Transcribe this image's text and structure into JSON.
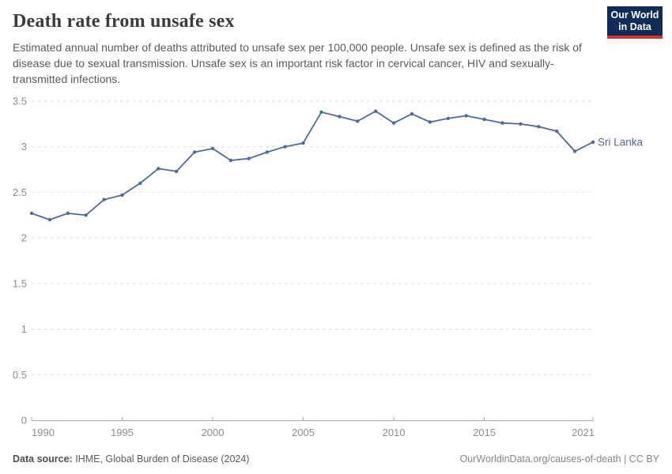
{
  "header": {
    "title": "Death rate from unsafe sex",
    "subtitle": "Estimated annual number of deaths attributed to unsafe sex per 100,000 people. Unsafe sex is defined as the risk of disease due to sexual transmission. Unsafe sex is an important risk factor in cervical cancer, HIV and sexually-transmitted infections."
  },
  "logo": {
    "line1": "Our World",
    "line2": "in Data",
    "bg_color": "#102d59",
    "stripe_color": "#d7332c",
    "text_color": "#ffffff"
  },
  "chart_data": {
    "type": "line",
    "title": "Death rate from unsafe sex",
    "x": [
      1990,
      1991,
      1992,
      1993,
      1994,
      1995,
      1996,
      1997,
      1998,
      1999,
      2000,
      2001,
      2002,
      2003,
      2004,
      2005,
      2006,
      2007,
      2008,
      2009,
      2010,
      2011,
      2012,
      2013,
      2014,
      2015,
      2016,
      2017,
      2018,
      2019,
      2020,
      2021
    ],
    "series": [
      {
        "name": "Sri Lanka",
        "color": "#4c6a9c",
        "values": [
          2.27,
          2.2,
          2.27,
          2.25,
          2.42,
          2.47,
          2.6,
          2.76,
          2.73,
          2.94,
          2.98,
          2.85,
          2.87,
          2.94,
          3.0,
          3.04,
          3.38,
          3.33,
          3.28,
          3.39,
          3.26,
          3.36,
          3.27,
          3.31,
          3.34,
          3.3,
          3.26,
          3.25,
          3.22,
          3.17,
          2.95,
          3.05
        ]
      }
    ],
    "xlim": [
      1990,
      2021
    ],
    "ylim": [
      0,
      3.5
    ],
    "xticks": [
      1990,
      1995,
      2000,
      2005,
      2010,
      2015,
      2021
    ],
    "yticks": [
      0,
      0.5,
      1,
      1.5,
      2,
      2.5,
      3,
      3.5
    ],
    "grid": "horizontal-dashed",
    "legend": "line-end-label"
  },
  "footer": {
    "source_label": "Data source:",
    "source_value": "IHME, Global Burden of Disease (2024)",
    "credit": "OurWorldinData.org/causes-of-death | CC BY"
  },
  "colors": {
    "series": "#4c6a9c",
    "title": "#3b3b3b",
    "subtitle": "#5a5a5a",
    "axis_text": "#8c8c8c",
    "gridline": "#dcdcdc",
    "axis_line": "#a8a8a8",
    "footer_text": "#5a5a5a",
    "footer_credit": "#858585"
  }
}
